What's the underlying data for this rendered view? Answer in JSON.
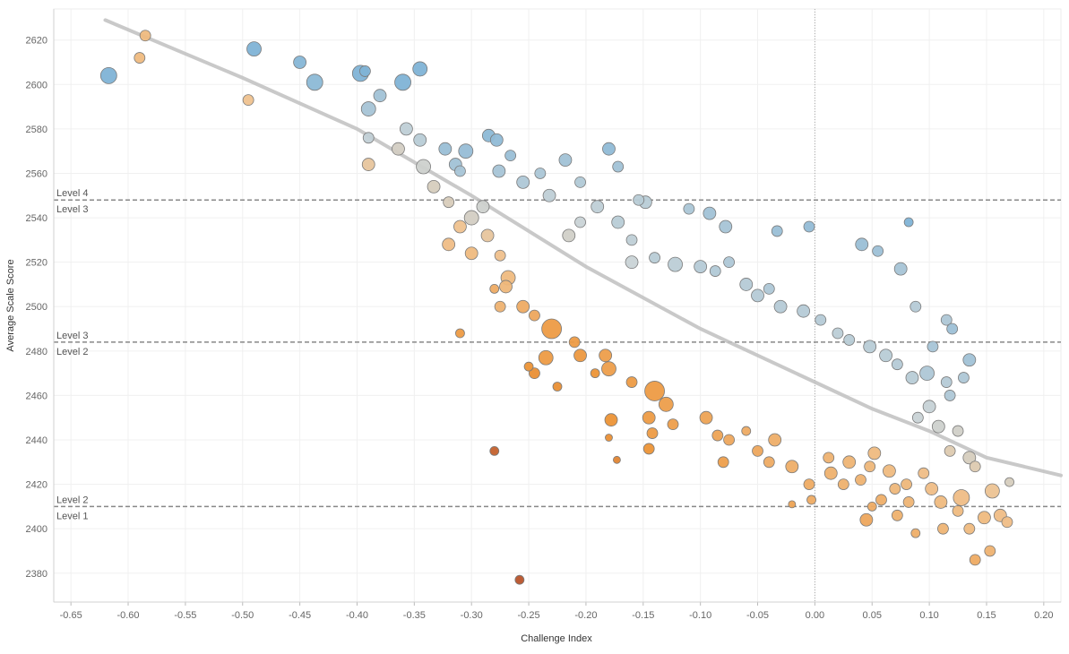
{
  "chart_data": {
    "type": "scatter",
    "title": "",
    "xlabel": "Challenge Index",
    "ylabel": "Average Scale Score",
    "xlim": [
      -0.665,
      0.215
    ],
    "ylim": [
      2367,
      2634
    ],
    "x_ticks": [
      -0.65,
      -0.6,
      -0.55,
      -0.5,
      -0.45,
      -0.4,
      -0.35,
      -0.3,
      -0.25,
      -0.2,
      -0.15,
      -0.1,
      -0.05,
      0.0,
      0.05,
      0.1,
      0.15,
      0.2
    ],
    "x_tick_labels": [
      "-0.65",
      "-0.60",
      "-0.55",
      "-0.50",
      "-0.45",
      "-0.40",
      "-0.35",
      "-0.30",
      "-0.25",
      "-0.20",
      "-0.15",
      "-0.10",
      "-0.05",
      "0.00",
      "0.05",
      "0.10",
      "0.15",
      "0.20"
    ],
    "y_ticks": [
      2380,
      2400,
      2420,
      2440,
      2460,
      2480,
      2500,
      2520,
      2540,
      2560,
      2580,
      2600,
      2620
    ],
    "y_tick_labels": [
      "2380",
      "2400",
      "2420",
      "2440",
      "2460",
      "2480",
      "2500",
      "2520",
      "2540",
      "2560",
      "2580",
      "2600",
      "2620"
    ],
    "grid": true,
    "zero_line_x": 0.0,
    "reference_lines": [
      {
        "y": 2548,
        "label_above": "Level 4",
        "label_below": "Level 3"
      },
      {
        "y": 2484,
        "label_above": "Level 3",
        "label_below": "Level 2"
      },
      {
        "y": 2410,
        "label_above": "Level 2",
        "label_below": "Level 1"
      }
    ],
    "trend_line": [
      [
        -0.62,
        2629
      ],
      [
        -0.5,
        2603
      ],
      [
        -0.4,
        2580
      ],
      [
        -0.3,
        2550
      ],
      [
        -0.2,
        2518
      ],
      [
        -0.1,
        2490
      ],
      [
        0.0,
        2466
      ],
      [
        0.05,
        2454
      ],
      [
        0.1,
        2444
      ],
      [
        0.15,
        2432
      ],
      [
        0.215,
        2424
      ]
    ],
    "colors": {
      "above": "#7fb3d6",
      "mid": "#c9d3d6",
      "warm": "#efc28f",
      "below": "#ec9336",
      "far_below": "#b8532a",
      "trend": "#c0c0c0",
      "refline": "#888888"
    },
    "points": [
      [
        -0.617,
        2604,
        9,
        80
      ],
      [
        -0.585,
        2622,
        6,
        -20
      ],
      [
        -0.59,
        2612,
        6,
        -20
      ],
      [
        -0.495,
        2593,
        6,
        -15
      ],
      [
        -0.49,
        2616,
        8,
        22
      ],
      [
        -0.45,
        2610,
        7,
        20
      ],
      [
        -0.437,
        2601,
        9,
        18
      ],
      [
        -0.397,
        2605,
        9,
        25
      ],
      [
        -0.393,
        2606,
        6,
        25
      ],
      [
        -0.39,
        2589,
        8,
        10
      ],
      [
        -0.38,
        2595,
        7,
        12
      ],
      [
        -0.39,
        2576,
        6,
        2
      ],
      [
        -0.39,
        2564,
        7,
        -12
      ],
      [
        -0.36,
        2601,
        9,
        22
      ],
      [
        -0.345,
        2607,
        8,
        25
      ],
      [
        -0.357,
        2580,
        7,
        3
      ],
      [
        -0.364,
        2571,
        7,
        -4
      ],
      [
        -0.345,
        2575,
        7,
        5
      ],
      [
        -0.342,
        2563,
        8,
        -2
      ],
      [
        -0.323,
        2571,
        7,
        14
      ],
      [
        -0.314,
        2564,
        7,
        12
      ],
      [
        -0.305,
        2570,
        8,
        15
      ],
      [
        -0.31,
        2561,
        6,
        10
      ],
      [
        -0.285,
        2577,
        7,
        18
      ],
      [
        -0.278,
        2575,
        7,
        17
      ],
      [
        -0.266,
        2568,
        6,
        14
      ],
      [
        -0.276,
        2561,
        7,
        10
      ],
      [
        -0.255,
        2556,
        7,
        8
      ],
      [
        -0.24,
        2560,
        6,
        9
      ],
      [
        -0.218,
        2566,
        7,
        12
      ],
      [
        -0.232,
        2550,
        7,
        3
      ],
      [
        -0.205,
        2556,
        6,
        7
      ],
      [
        -0.18,
        2571,
        7,
        17
      ],
      [
        -0.172,
        2563,
        6,
        12
      ],
      [
        -0.154,
        2548,
        6,
        5
      ],
      [
        -0.11,
        2544,
        6,
        9
      ],
      [
        -0.092,
        2542,
        7,
        12
      ],
      [
        -0.078,
        2536,
        7,
        10
      ],
      [
        -0.033,
        2534,
        6,
        14
      ],
      [
        -0.005,
        2536,
        6,
        16
      ],
      [
        0.041,
        2528,
        7,
        14
      ],
      [
        0.055,
        2525,
        6,
        13
      ],
      [
        0.082,
        2538,
        5,
        25
      ],
      [
        0.075,
        2517,
        7,
        10
      ],
      [
        0.088,
        2500,
        6,
        6
      ],
      [
        0.115,
        2494,
        6,
        8
      ],
      [
        0.103,
        2482,
        6,
        10
      ],
      [
        0.12,
        2490,
        6,
        13
      ],
      [
        0.135,
        2476,
        7,
        12
      ],
      [
        0.13,
        2468,
        6,
        8
      ],
      [
        0.118,
        2460,
        6,
        8
      ],
      [
        -0.333,
        2554,
        7,
        -5
      ],
      [
        -0.32,
        2547,
        6,
        -6
      ],
      [
        -0.31,
        2536,
        7,
        -15
      ],
      [
        -0.32,
        2528,
        7,
        -18
      ],
      [
        -0.3,
        2524,
        7,
        -20
      ],
      [
        -0.286,
        2532,
        7,
        -12
      ],
      [
        -0.275,
        2523,
        6,
        -16
      ],
      [
        -0.27,
        2509,
        7,
        -22
      ],
      [
        -0.275,
        2500,
        6,
        -25
      ],
      [
        -0.268,
        2513,
        8,
        -20
      ],
      [
        -0.3,
        2540,
        8,
        -4
      ],
      [
        -0.29,
        2545,
        7,
        -2
      ],
      [
        -0.31,
        2488,
        5,
        -40
      ],
      [
        -0.28,
        2508,
        5,
        -30
      ],
      [
        -0.255,
        2500,
        7,
        -30
      ],
      [
        -0.245,
        2496,
        6,
        -32
      ],
      [
        -0.23,
        2490,
        11,
        -40
      ],
      [
        -0.25,
        2473,
        5,
        -45
      ],
      [
        -0.245,
        2470,
        6,
        -48
      ],
      [
        -0.235,
        2477,
        8,
        -40
      ],
      [
        -0.21,
        2484,
        6,
        -40
      ],
      [
        -0.205,
        2478,
        7,
        -42
      ],
      [
        -0.183,
        2478,
        7,
        -38
      ],
      [
        -0.18,
        2472,
        8,
        -38
      ],
      [
        -0.192,
        2470,
        5,
        -45
      ],
      [
        -0.225,
        2464,
        5,
        -48
      ],
      [
        -0.178,
        2449,
        7,
        -45
      ],
      [
        -0.18,
        2441,
        4,
        -48
      ],
      [
        -0.16,
        2466,
        6,
        -40
      ],
      [
        -0.14,
        2462,
        11,
        -40
      ],
      [
        -0.13,
        2456,
        8,
        -38
      ],
      [
        -0.145,
        2450,
        7,
        -40
      ],
      [
        -0.142,
        2443,
        6,
        -40
      ],
      [
        -0.124,
        2447,
        6,
        -38
      ],
      [
        -0.145,
        2436,
        6,
        -45
      ],
      [
        -0.28,
        2435,
        5,
        -80
      ],
      [
        -0.173,
        2431,
        4,
        -55
      ],
      [
        -0.258,
        2377,
        5,
        -90
      ],
      [
        -0.095,
        2450,
        7,
        -35
      ],
      [
        -0.085,
        2442,
        6,
        -35
      ],
      [
        -0.075,
        2440,
        6,
        -32
      ],
      [
        -0.08,
        2430,
        6,
        -38
      ],
      [
        -0.06,
        2444,
        5,
        -30
      ],
      [
        -0.05,
        2435,
        6,
        -32
      ],
      [
        -0.04,
        2430,
        6,
        -30
      ],
      [
        -0.035,
        2440,
        7,
        -28
      ],
      [
        -0.02,
        2428,
        7,
        -28
      ],
      [
        -0.005,
        2420,
        6,
        -30
      ],
      [
        -0.02,
        2411,
        4,
        -35
      ],
      [
        -0.003,
        2413,
        5,
        -30
      ],
      [
        0.012,
        2432,
        6,
        -25
      ],
      [
        0.014,
        2425,
        7,
        -26
      ],
      [
        0.025,
        2420,
        6,
        -26
      ],
      [
        0.03,
        2430,
        7,
        -24
      ],
      [
        0.04,
        2422,
        6,
        -25
      ],
      [
        0.048,
        2428,
        6,
        -22
      ],
      [
        0.052,
        2434,
        7,
        -20
      ],
      [
        0.05,
        2410,
        5,
        -30
      ],
      [
        0.045,
        2404,
        7,
        -32
      ],
      [
        0.058,
        2413,
        6,
        -28
      ],
      [
        0.065,
        2426,
        7,
        -20
      ],
      [
        0.07,
        2418,
        6,
        -22
      ],
      [
        0.072,
        2406,
        6,
        -26
      ],
      [
        0.082,
        2412,
        6,
        -24
      ],
      [
        0.08,
        2420,
        6,
        -22
      ],
      [
        0.088,
        2398,
        5,
        -28
      ],
      [
        0.095,
        2425,
        6,
        -18
      ],
      [
        0.102,
        2418,
        7,
        -18
      ],
      [
        0.11,
        2412,
        7,
        -20
      ],
      [
        0.112,
        2400,
        6,
        -24
      ],
      [
        0.125,
        2408,
        6,
        -20
      ],
      [
        0.128,
        2414,
        9,
        -18
      ],
      [
        0.135,
        2400,
        6,
        -20
      ],
      [
        0.14,
        2386,
        6,
        -30
      ],
      [
        0.148,
        2405,
        7,
        -20
      ],
      [
        0.153,
        2390,
        6,
        -25
      ],
      [
        0.155,
        2417,
        8,
        -14
      ],
      [
        0.162,
        2406,
        7,
        -18
      ],
      [
        0.168,
        2403,
        6,
        -18
      ],
      [
        0.17,
        2421,
        5,
        -5
      ],
      [
        0.14,
        2428,
        6,
        -8
      ],
      [
        0.135,
        2432,
        7,
        -5
      ],
      [
        0.118,
        2435,
        6,
        -8
      ],
      [
        0.125,
        2444,
        6,
        -3
      ],
      [
        0.108,
        2446,
        7,
        -2
      ],
      [
        0.09,
        2450,
        6,
        0
      ],
      [
        0.1,
        2455,
        7,
        1
      ],
      [
        -0.148,
        2547,
        7,
        5
      ],
      [
        -0.19,
        2545,
        7,
        3
      ],
      [
        -0.205,
        2538,
        6,
        0
      ],
      [
        -0.215,
        2532,
        7,
        -3
      ],
      [
        -0.172,
        2538,
        7,
        5
      ],
      [
        -0.16,
        2530,
        6,
        3
      ],
      [
        -0.16,
        2520,
        7,
        0
      ],
      [
        -0.14,
        2522,
        6,
        5
      ],
      [
        -0.122,
        2519,
        8,
        4
      ],
      [
        -0.1,
        2518,
        7,
        6
      ],
      [
        -0.087,
        2516,
        6,
        7
      ],
      [
        -0.075,
        2520,
        6,
        8
      ],
      [
        -0.06,
        2510,
        7,
        6
      ],
      [
        -0.05,
        2505,
        7,
        6
      ],
      [
        -0.04,
        2508,
        6,
        8
      ],
      [
        -0.03,
        2500,
        7,
        6
      ],
      [
        -0.01,
        2498,
        7,
        6
      ],
      [
        0.005,
        2494,
        6,
        6
      ],
      [
        0.02,
        2488,
        6,
        4
      ],
      [
        0.03,
        2485,
        6,
        5
      ],
      [
        0.048,
        2482,
        7,
        5
      ],
      [
        0.062,
        2478,
        7,
        5
      ],
      [
        0.072,
        2474,
        6,
        6
      ],
      [
        0.085,
        2468,
        7,
        5
      ],
      [
        0.098,
        2470,
        8,
        8
      ],
      [
        0.115,
        2466,
        6,
        6
      ]
    ]
  }
}
